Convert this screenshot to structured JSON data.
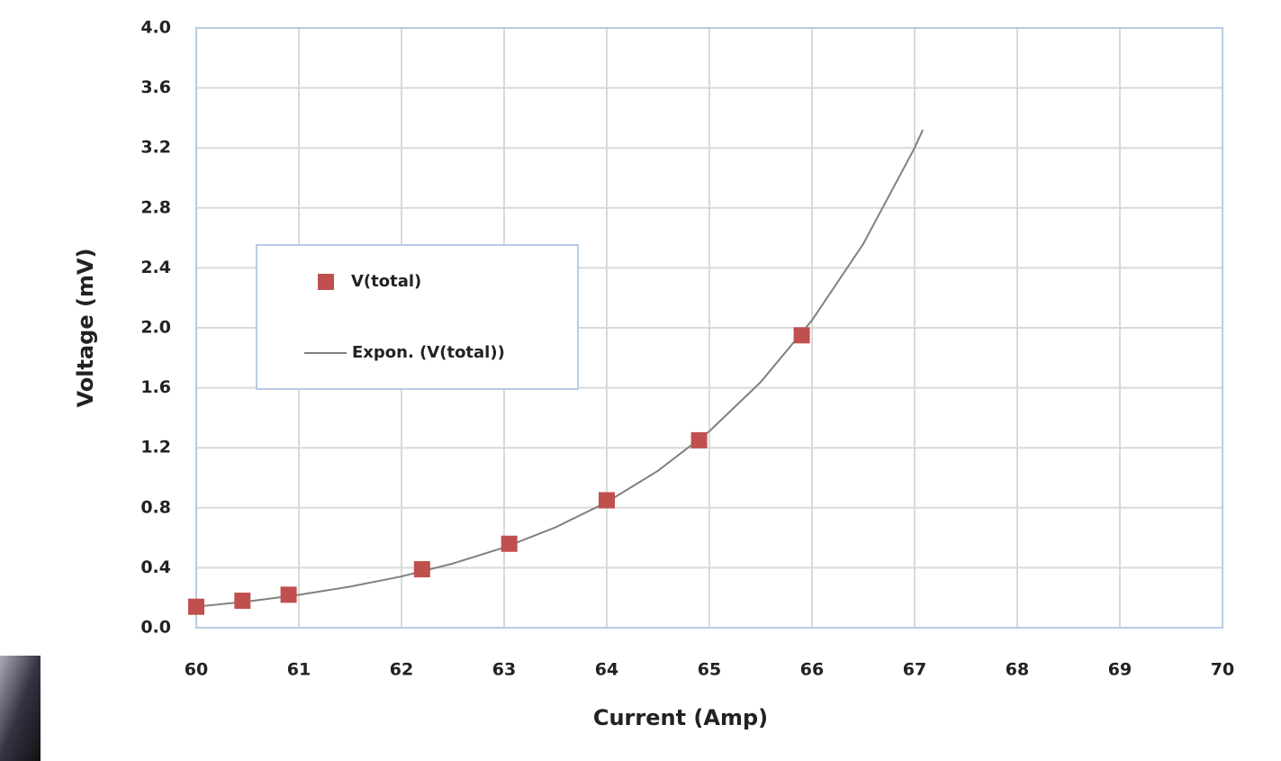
{
  "chart_data": {
    "type": "scatter",
    "xlabel": "Current (Amp)",
    "ylabel": "Voltage (mV)",
    "xlim": [
      60,
      70
    ],
    "xticks": [
      60,
      61,
      62,
      63,
      64,
      65,
      66,
      67,
      68,
      69,
      70
    ],
    "ylim": [
      0,
      4
    ],
    "yticks": [
      {
        "value": 0,
        "label": "0.0"
      },
      0.4,
      0.8,
      1.2,
      1.6,
      {
        "value": 2,
        "label": "2.0"
      },
      2.4,
      2.8,
      3.2,
      3.6,
      {
        "value": 4,
        "label": "4.0"
      }
    ],
    "grid": true,
    "legend": "upper left",
    "series": [
      {
        "name": "V(total)",
        "type": "scatter",
        "color": "#c0504d",
        "x": [
          60.0,
          60.45,
          60.9,
          62.2,
          63.05,
          64.0,
          64.9,
          65.9
        ],
        "values": [
          0.14,
          0.18,
          0.22,
          0.39,
          0.56,
          0.85,
          1.25,
          1.95
        ]
      },
      {
        "name": "Expon. (V(total))",
        "type": "line",
        "color": "#808080",
        "x": [
          60,
          60.5,
          61,
          61.5,
          62,
          62.5,
          63,
          63.5,
          64,
          64.5,
          65,
          65.5,
          66,
          66.5,
          67,
          67.08
        ],
        "values": [
          0.14,
          0.175,
          0.219,
          0.274,
          0.342,
          0.428,
          0.535,
          0.669,
          0.837,
          1.047,
          1.31,
          1.638,
          2.05,
          2.56,
          3.2,
          3.32
        ]
      }
    ]
  }
}
